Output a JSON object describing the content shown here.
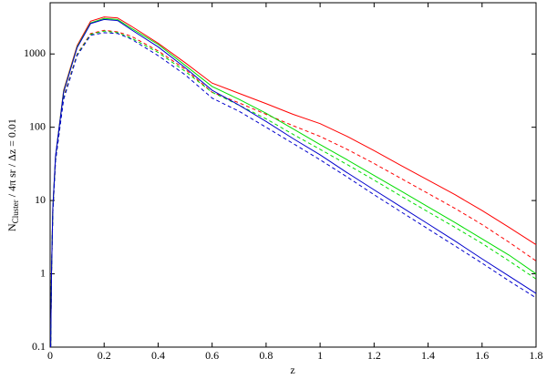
{
  "chart_data": {
    "type": "line",
    "xlabel": "z",
    "ylabel": [
      "N",
      "Cluster",
      " / 4π sr / Δz = 0.01"
    ],
    "log_y": true,
    "xlim": [
      0,
      1.8
    ],
    "xticks": [
      0,
      0.2,
      0.4,
      0.6,
      0.8,
      1,
      1.2,
      1.4,
      1.6,
      1.8
    ],
    "ylim": [
      0.1,
      5000
    ],
    "yticks": [
      0.1,
      1,
      10,
      100,
      1000
    ],
    "x": [
      0.002,
      0.005,
      0.01,
      0.02,
      0.05,
      0.1,
      0.15,
      0.2,
      0.25,
      0.3,
      0.4,
      0.5,
      0.6,
      0.7,
      0.8,
      0.9,
      1.0,
      1.1,
      1.2,
      1.3,
      1.4,
      1.5,
      1.6,
      1.7,
      1.8
    ],
    "series": [
      {
        "color": "#ff0000",
        "dash": false,
        "values": [
          0.1,
          1,
          8,
          40,
          320,
          1300,
          2800,
          3200,
          3100,
          2400,
          1400,
          760,
          400,
          290,
          210,
          150,
          112,
          75,
          48,
          30,
          19,
          12,
          7.3,
          4.3,
          2.5
        ]
      },
      {
        "color": "#ff0000",
        "dash": true,
        "values": [
          0.1,
          1,
          7,
          35,
          260,
          1000,
          1900,
          2100,
          2000,
          1750,
          1100,
          620,
          300,
          215,
          150,
          105,
          75,
          50,
          32,
          20,
          12.5,
          7.8,
          4.7,
          2.7,
          1.5
        ]
      },
      {
        "color": "#00dd00",
        "dash": false,
        "values": [
          0.1,
          1,
          8,
          40,
          310,
          1250,
          2650,
          3050,
          2950,
          2250,
          1350,
          700,
          360,
          240,
          155,
          95,
          58,
          36,
          22,
          13.5,
          8.2,
          5,
          3,
          1.8,
          1.0
        ]
      },
      {
        "color": "#00dd00",
        "dash": true,
        "values": [
          0.1,
          1,
          7,
          35,
          250,
          980,
          1850,
          2050,
          1950,
          1650,
          1050,
          580,
          300,
          200,
          130,
          80,
          50,
          31,
          19,
          11.5,
          7,
          4.3,
          2.6,
          1.5,
          0.85
        ]
      },
      {
        "color": "#0000cc",
        "dash": false,
        "values": [
          0.1,
          1,
          8,
          40,
          300,
          1220,
          2600,
          2950,
          2850,
          2150,
          1250,
          650,
          320,
          200,
          120,
          70,
          42,
          24,
          14,
          8.2,
          4.8,
          2.8,
          1.6,
          0.93,
          0.54
        ]
      },
      {
        "color": "#0000cc",
        "dash": true,
        "values": [
          0.1,
          1,
          7,
          35,
          240,
          950,
          1800,
          1950,
          1900,
          1600,
          950,
          520,
          250,
          165,
          100,
          60,
          36,
          21,
          12,
          7,
          4.1,
          2.4,
          1.4,
          0.8,
          0.47
        ]
      }
    ]
  }
}
